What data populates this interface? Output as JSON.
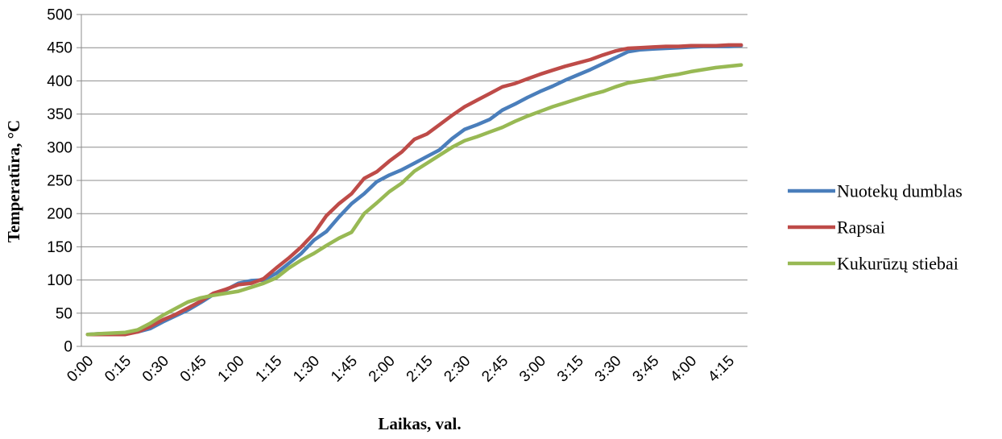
{
  "chart_data": {
    "type": "line",
    "title": "",
    "xlabel": "Laikas, val.",
    "ylabel": "Temperatūra, °C",
    "ylim": [
      0,
      500
    ],
    "yticks": [
      0,
      50,
      100,
      150,
      200,
      250,
      300,
      350,
      400,
      450,
      500
    ],
    "grid": "horizontal",
    "legend_position": "right",
    "x": [
      "0:00",
      "0:05",
      "0:10",
      "0:15",
      "0:20",
      "0:25",
      "0:30",
      "0:35",
      "0:40",
      "0:45",
      "0:50",
      "0:55",
      "1:00",
      "1:05",
      "1:10",
      "1:15",
      "1:20",
      "1:25",
      "1:30",
      "1:35",
      "1:40",
      "1:45",
      "1:50",
      "1:55",
      "2:00",
      "2:05",
      "2:10",
      "2:15",
      "2:20",
      "2:25",
      "2:30",
      "2:35",
      "2:40",
      "2:45",
      "2:50",
      "2:55",
      "3:00",
      "3:05",
      "3:10",
      "3:15",
      "3:20",
      "3:25",
      "3:30",
      "3:35",
      "3:40",
      "3:45",
      "3:50",
      "3:55",
      "4:00",
      "4:05",
      "4:10",
      "4:15",
      "4:20"
    ],
    "xtick_labels": [
      "0:00",
      "0:15",
      "0:30",
      "0:45",
      "1:00",
      "1:15",
      "1:30",
      "1:45",
      "2:00",
      "2:15",
      "2:30",
      "2:45",
      "3:00",
      "3:15",
      "3:30",
      "3:45",
      "4:00",
      "4:15"
    ],
    "series": [
      {
        "name": "Nuotekų dumblas",
        "color": "#4a7ebb",
        "values": [
          18,
          19,
          19,
          20,
          22,
          27,
          37,
          46,
          55,
          66,
          78,
          85,
          95,
          99,
          100,
          110,
          125,
          140,
          160,
          173,
          195,
          215,
          230,
          248,
          258,
          266,
          276,
          286,
          296,
          313,
          327,
          334,
          342,
          356,
          365,
          375,
          384,
          392,
          401,
          409,
          417,
          426,
          435,
          444,
          447,
          448,
          449,
          450,
          451,
          452,
          452,
          452,
          453
        ]
      },
      {
        "name": "Rapsai",
        "color": "#be4b48",
        "values": [
          18,
          18,
          18,
          18,
          22,
          30,
          40,
          48,
          58,
          68,
          80,
          86,
          93,
          95,
          102,
          118,
          133,
          150,
          170,
          197,
          215,
          230,
          253,
          263,
          279,
          293,
          312,
          320,
          334,
          348,
          361,
          371,
          381,
          391,
          396,
          403,
          410,
          416,
          422,
          427,
          432,
          439,
          445,
          449,
          450,
          451,
          452,
          452,
          453,
          453,
          453,
          454,
          454
        ]
      },
      {
        "name": "Kukurūzų stiebai",
        "color": "#98b954",
        "values": [
          18,
          19,
          20,
          21,
          25,
          35,
          47,
          57,
          67,
          73,
          77,
          80,
          83,
          89,
          95,
          103,
          118,
          130,
          140,
          152,
          163,
          172,
          200,
          216,
          233,
          246,
          264,
          276,
          288,
          300,
          310,
          316,
          323,
          330,
          339,
          347,
          354,
          361,
          367,
          373,
          379,
          384,
          391,
          397,
          400,
          403,
          407,
          410,
          414,
          417,
          420,
          422,
          424
        ]
      }
    ]
  }
}
